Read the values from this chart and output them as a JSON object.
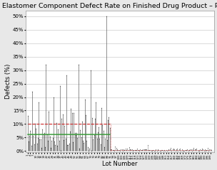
{
  "title": "Elastomer Component Defect Rate on Finished Drug Product – Per Lot",
  "xlabel": "Lot Number",
  "ylabel": "Defects (%)",
  "ylim": [
    -0.005,
    0.52
  ],
  "yticks": [
    0.0,
    0.05,
    0.1,
    0.15,
    0.2,
    0.25,
    0.3,
    0.35,
    0.4,
    0.45,
    0.5
  ],
  "ytick_labels": [
    "0%",
    "5%",
    "10%",
    "15%",
    "20%",
    "25%",
    "30%",
    "35%",
    "40%",
    "45%",
    "50%"
  ],
  "green_line": 0.062,
  "red_dashed_line": 0.1,
  "red_dotted_line": 0.004,
  "n_lots_high": 90,
  "n_lots_low": 110,
  "background_color": "#e8e8e8",
  "plot_bg": "#ffffff",
  "stem_color_high": "#555555",
  "stem_color_low": "#888888",
  "marker_color": "#222222",
  "green_color": "#3a9c3a",
  "red_color": "#cc2222",
  "title_fontsize": 6.8,
  "label_fontsize": 6.0,
  "tick_fontsize": 5.0
}
